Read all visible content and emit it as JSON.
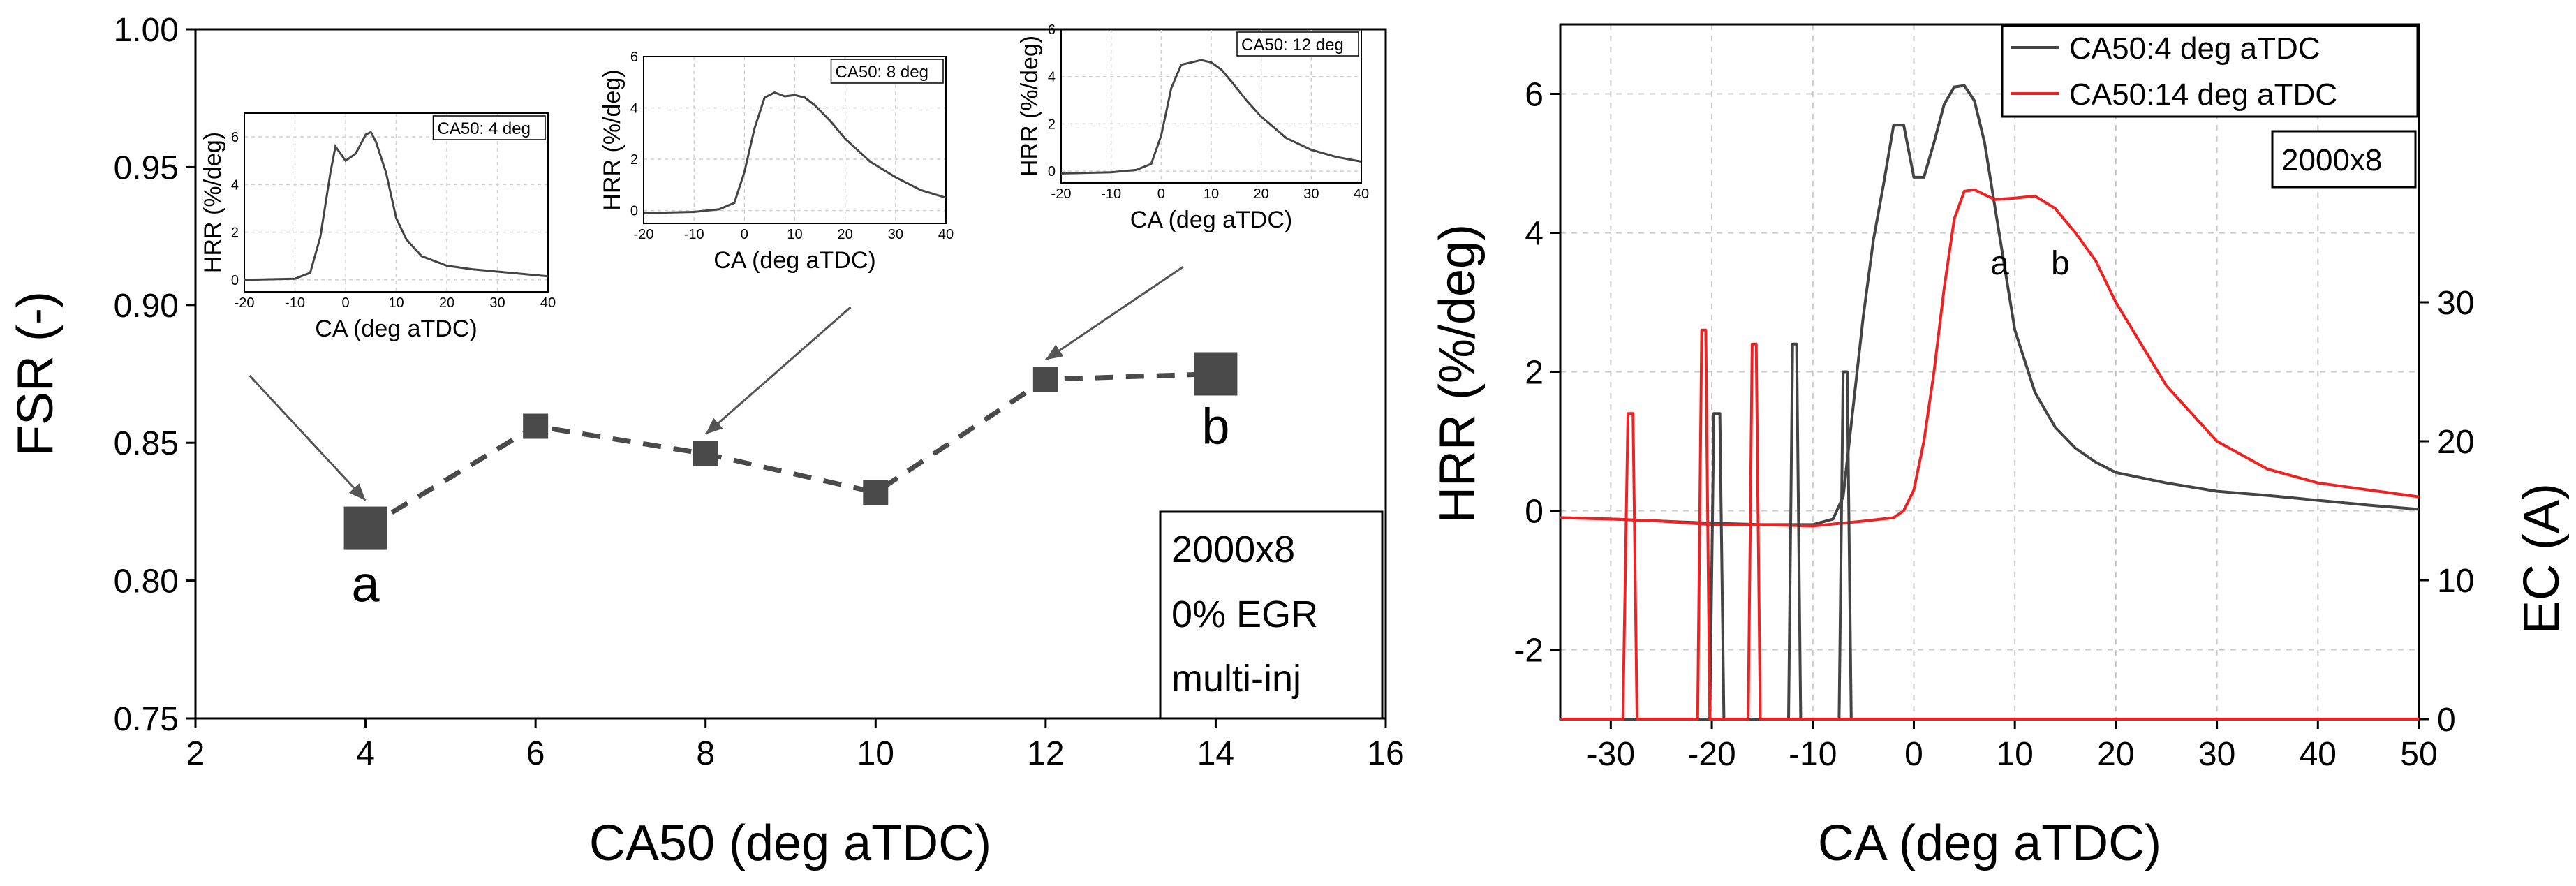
{
  "chart_data": [
    {
      "type": "line",
      "title": "",
      "xlabel": "CA50 (deg aTDC)",
      "ylabel": "FSR (-)",
      "xlim": [
        2,
        16
      ],
      "ylim": [
        0.75,
        1.0
      ],
      "xticks": [
        2,
        4,
        6,
        8,
        10,
        12,
        14,
        16
      ],
      "yticks": [
        0.75,
        0.8,
        0.85,
        0.9,
        0.95,
        1.0
      ],
      "xtick_labels": [
        "2",
        "4",
        "6",
        "8",
        "10",
        "12",
        "14",
        "16"
      ],
      "ytick_labels": [
        "0.75",
        "0.80",
        "0.85",
        "0.90",
        "0.95",
        "1.00"
      ],
      "series": [
        {
          "name": "FSR",
          "x": [
            4,
            6,
            8,
            10,
            12,
            14
          ],
          "y": [
            0.819,
            0.856,
            0.846,
            0.832,
            0.873,
            0.875
          ],
          "color": "#4a4a4a",
          "style": "dashed",
          "marker": "square"
        }
      ],
      "point_labels": [
        {
          "text": "a",
          "x": 4,
          "y": 0.819
        },
        {
          "text": "b",
          "x": 14,
          "y": 0.875
        }
      ],
      "annotation_lines": [
        "2000x8",
        "0% EGR",
        "multi-inj"
      ],
      "insets": [
        {
          "label": "CA50: 4 deg",
          "xlabel": "CA (deg aTDC)",
          "ylabel": "HRR (%/deg)",
          "xlim": [
            -20,
            40
          ],
          "ylim": [
            -0.5,
            7
          ],
          "xticks": [
            -20,
            -10,
            0,
            10,
            20,
            30,
            40
          ],
          "yticks": [
            0,
            2,
            4,
            6
          ],
          "x": [
            -20,
            -10,
            -7,
            -5,
            -3,
            -2,
            0,
            2,
            4,
            5,
            6,
            8,
            10,
            12,
            15,
            20,
            25,
            30,
            35,
            40
          ],
          "y": [
            0,
            0.05,
            0.3,
            1.8,
            4.5,
            5.6,
            5.0,
            5.3,
            6.1,
            6.2,
            5.8,
            4.5,
            2.6,
            1.7,
            1.0,
            0.6,
            0.45,
            0.35,
            0.25,
            0.15
          ],
          "points_to": 4
        },
        {
          "label": "CA50: 8 deg",
          "xlabel": "CA (deg aTDC)",
          "ylabel": "HRR (%/deg)",
          "xlim": [
            -20,
            40
          ],
          "ylim": [
            -0.5,
            6
          ],
          "xticks": [
            -20,
            -10,
            0,
            10,
            20,
            30,
            40
          ],
          "yticks": [
            0,
            2,
            4,
            6
          ],
          "x": [
            -20,
            -10,
            -5,
            -2,
            0,
            2,
            4,
            6,
            8,
            10,
            12,
            14,
            17,
            20,
            25,
            30,
            35,
            40
          ],
          "y": [
            -0.1,
            -0.05,
            0.05,
            0.3,
            1.5,
            3.2,
            4.4,
            4.6,
            4.45,
            4.5,
            4.4,
            4.1,
            3.5,
            2.8,
            1.9,
            1.3,
            0.8,
            0.5
          ],
          "points_to": 8
        },
        {
          "label": "CA50: 12 deg",
          "xlabel": "CA (deg aTDC)",
          "ylabel": "HRR (%/deg)",
          "xlim": [
            -20,
            40
          ],
          "ylim": [
            -0.5,
            6
          ],
          "xticks": [
            -20,
            -10,
            0,
            10,
            20,
            30,
            40
          ],
          "yticks": [
            0,
            2,
            4,
            6
          ],
          "x": [
            -20,
            -10,
            -5,
            -2,
            0,
            2,
            4,
            6,
            8,
            10,
            12,
            14,
            17,
            20,
            25,
            30,
            35,
            40
          ],
          "y": [
            -0.1,
            -0.05,
            0.05,
            0.3,
            1.5,
            3.5,
            4.5,
            4.6,
            4.7,
            4.6,
            4.3,
            3.8,
            3.0,
            2.3,
            1.4,
            0.9,
            0.6,
            0.4
          ],
          "points_to": 12
        }
      ]
    },
    {
      "type": "line",
      "title": "",
      "xlabel": "CA (deg aTDC)",
      "ylabel": "HRR (%/deg)",
      "y2label": "EC (A)",
      "xlim": [
        -35,
        50
      ],
      "ylim": [
        -3,
        7
      ],
      "y2lim": [
        0,
        50
      ],
      "xticks": [
        -30,
        -20,
        -10,
        0,
        10,
        20,
        30,
        40,
        50
      ],
      "yticks": [
        -2,
        0,
        2,
        4,
        6
      ],
      "y2ticks": [
        0,
        10,
        20,
        30
      ],
      "xtick_labels": [
        "-30",
        "-20",
        "-10",
        "0",
        "10",
        "20",
        "30",
        "40",
        "50"
      ],
      "ytick_labels": [
        "-2",
        "0",
        "2",
        "4",
        "6"
      ],
      "y2tick_labels": [
        "0",
        "10",
        "20",
        "30"
      ],
      "legend": [
        "CA50:4 deg aTDC",
        "CA50:14 deg aTDC"
      ],
      "legend_position": "top-right",
      "annotation": "2000x8",
      "curve_labels": [
        {
          "text": "a",
          "x": 8.5,
          "y": 3.4
        },
        {
          "text": "b",
          "x": 14.5,
          "y": 3.4
        }
      ],
      "series": [
        {
          "name": "CA50:4 deg aTDC",
          "axis": "HRR",
          "color": "#444444",
          "x": [
            -35,
            -30,
            -25,
            -20,
            -15,
            -10,
            -8,
            -7,
            -6,
            -5,
            -4,
            -3,
            -2,
            -1,
            0,
            1,
            2,
            3,
            4,
            5,
            6,
            7,
            8,
            9,
            10,
            12,
            14,
            16,
            18,
            20,
            25,
            30,
            35,
            40,
            45,
            50
          ],
          "y": [
            -0.1,
            -0.12,
            -0.15,
            -0.18,
            -0.2,
            -0.2,
            -0.12,
            0.2,
            1.5,
            2.8,
            3.9,
            4.7,
            5.55,
            5.55,
            4.8,
            4.8,
            5.3,
            5.85,
            6.1,
            6.12,
            5.9,
            5.3,
            4.4,
            3.5,
            2.6,
            1.7,
            1.2,
            0.9,
            0.7,
            0.55,
            0.4,
            0.28,
            0.22,
            0.15,
            0.08,
            0.02
          ]
        },
        {
          "name": "CA50:14 deg aTDC",
          "axis": "HRR",
          "color": "#ee2222",
          "x": [
            -35,
            -30,
            -25,
            -20,
            -15,
            -10,
            -5,
            -2,
            -1,
            0,
            1,
            2,
            3,
            4,
            5,
            6,
            7,
            8,
            10,
            12,
            14,
            16,
            18,
            20,
            25,
            30,
            35,
            40,
            45,
            50
          ],
          "y": [
            -0.1,
            -0.12,
            -0.15,
            -0.2,
            -0.2,
            -0.22,
            -0.15,
            -0.1,
            0.0,
            0.3,
            1.0,
            2.0,
            3.2,
            4.2,
            4.6,
            4.62,
            4.55,
            4.48,
            4.5,
            4.53,
            4.35,
            4.0,
            3.6,
            3.0,
            1.8,
            1.0,
            0.6,
            0.4,
            0.3,
            0.2
          ]
        },
        {
          "name": "EC CA50:4 deg aTDC",
          "axis": "EC",
          "color": "#444444",
          "x": [
            -35,
            -20.2,
            -19.8,
            -19.2,
            -18.8,
            -12.4,
            -12.0,
            -11.6,
            -11.2,
            -7.4,
            -7.0,
            -6.6,
            -6.2,
            50
          ],
          "y": [
            0,
            0,
            22,
            22,
            0,
            0,
            27,
            27,
            0,
            0,
            25,
            25,
            0,
            0
          ]
        },
        {
          "name": "EC CA50:14 deg aTDC",
          "axis": "EC",
          "color": "#ee2222",
          "x": [
            -35,
            -28.8,
            -28.3,
            -27.8,
            -27.4,
            -21.4,
            -21.0,
            -20.6,
            -20.2,
            -16.4,
            -16.0,
            -15.6,
            -15.2,
            50
          ],
          "y": [
            0,
            0,
            22,
            22,
            0,
            0,
            28,
            28,
            0,
            0,
            27,
            27,
            0,
            0
          ]
        }
      ]
    }
  ]
}
